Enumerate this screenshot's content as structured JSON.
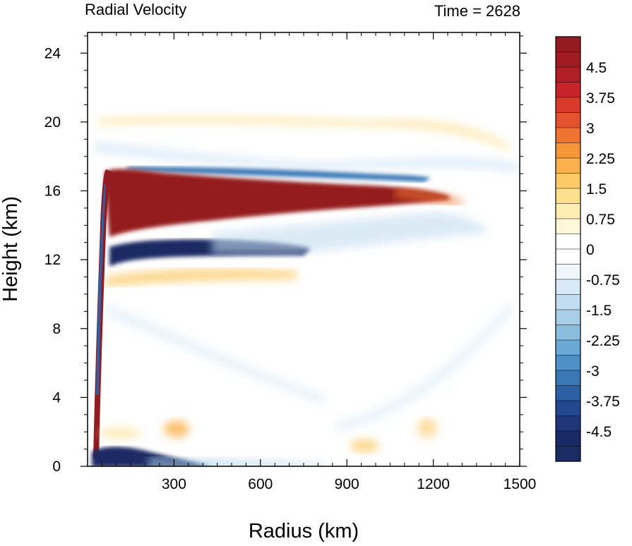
{
  "chart_data": {
    "type": "heatmap",
    "title_left": "Radial Velocity",
    "title_right": "Time = 2628",
    "xlabel": "Radius (km)",
    "ylabel": "Height (km)",
    "xlim": [
      0,
      1500
    ],
    "ylim": [
      0,
      25.2
    ],
    "xticks": [
      300,
      600,
      900,
      1200,
      1500
    ],
    "xtick_labels": [
      "300",
      "600",
      "900",
      "1200",
      "1500"
    ],
    "yticks": [
      0,
      4,
      8,
      12,
      16,
      20,
      24
    ],
    "ytick_labels": [
      "0",
      "4",
      "8",
      "12",
      "16",
      "20",
      "24"
    ],
    "colorbar": {
      "levels_min": -5.25,
      "levels_max": 5.25,
      "level_step": 0.375,
      "labels": [
        "4.5",
        "3.75",
        "3",
        "2.25",
        "1.5",
        "0.75",
        "0",
        "-0.75",
        "-1.5",
        "-2.25",
        "-3",
        "-3.75",
        "-4.5"
      ],
      "label_values": [
        4.5,
        3.75,
        3,
        2.25,
        1.5,
        0.75,
        0,
        -0.75,
        -1.5,
        -2.25,
        -3,
        -3.75,
        -4.5
      ],
      "colors_top_to_bottom": [
        "#941b1f",
        "#a11c22",
        "#b01e26",
        "#c8232a",
        "#d93a2b",
        "#e5532e",
        "#ef7432",
        "#f5963b",
        "#fab24d",
        "#fcca66",
        "#fde08d",
        "#feeeb3",
        "#fff7d9",
        "#ffffff",
        "#ffffff",
        "#eef5fb",
        "#d9eaf6",
        "#c3ddf0",
        "#a9cfe8",
        "#8bbddf",
        "#6ba8d4",
        "#4f91c7",
        "#3a78b6",
        "#2c5fa3",
        "#24488f",
        "#1e3577",
        "#1a2a66",
        "#1a2c64"
      ]
    },
    "features": [
      {
        "name": "upper-level outflow",
        "sign": "positive",
        "value": 5.0,
        "r_range": [
          40,
          1250
        ],
        "z_center": 15.5
      },
      {
        "name": "mid-level inflow below outflow",
        "sign": "negative",
        "value": -4.5,
        "r_range": [
          40,
          700
        ],
        "z_center": 12.6
      },
      {
        "name": "boundary-layer inflow",
        "sign": "negative",
        "value": -5.0,
        "r_range": [
          35,
          360
        ],
        "z_center": 0.5
      },
      {
        "name": "eyewall updraft outflow column",
        "sign": "positive",
        "value": 5.0,
        "r_range": [
          35,
          130
        ],
        "z_range": [
          0.5,
          17
        ]
      },
      {
        "name": "inflow above outflow",
        "sign": "negative",
        "value": -2.5,
        "r_range": [
          200,
          900
        ],
        "z_center": 17.3
      },
      {
        "name": "weak outflow near 11 km",
        "sign": "positive",
        "value": 1.5,
        "r_range": [
          100,
          550
        ],
        "z_center": 11.0
      },
      {
        "name": "weak outflow near 20 km",
        "sign": "positive",
        "value": 1.2,
        "r_range": [
          80,
          1450
        ],
        "z_center": 20.2
      }
    ]
  }
}
